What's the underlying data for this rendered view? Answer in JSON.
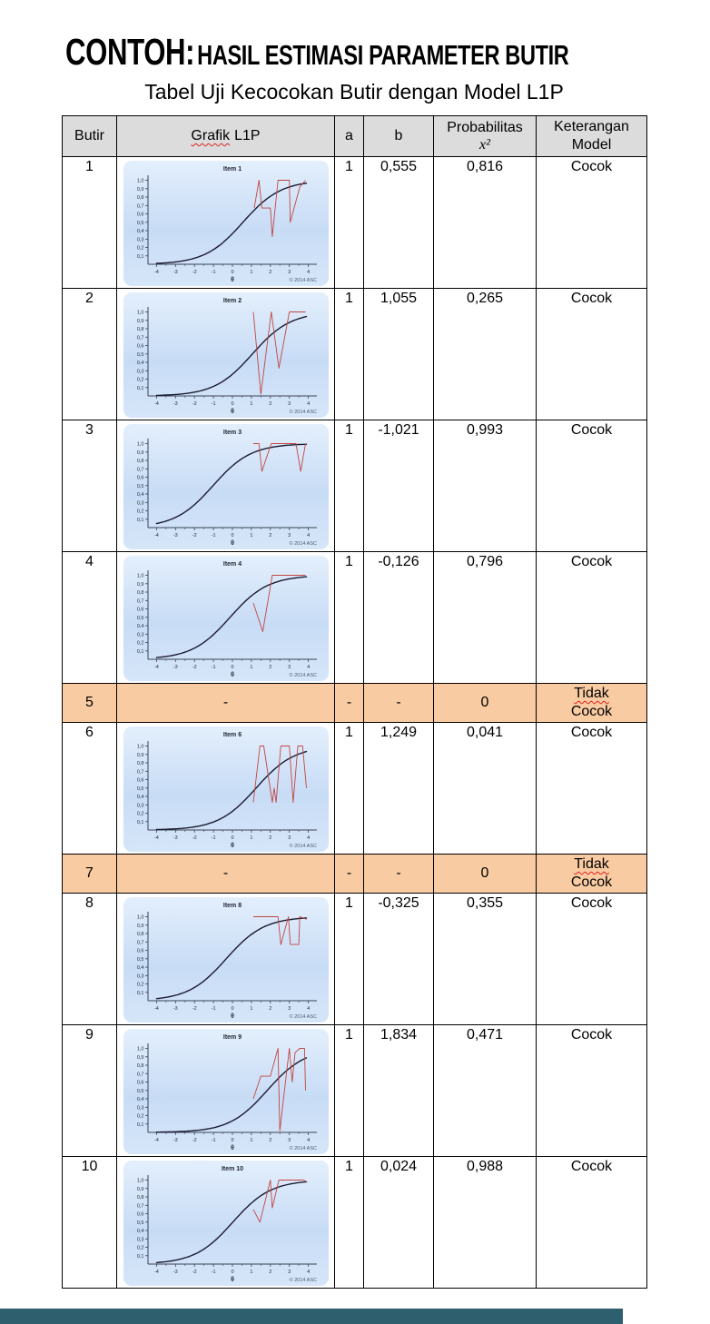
{
  "page": {
    "title_prefix": "CONTOH:",
    "title_rest": "HASIL ESTIMASI PARAMETER BUTIR",
    "subtitle": "Tabel Uji Kecocokan Butir dengan Model L1P"
  },
  "colors": {
    "header_bg": "#dcdcdc",
    "highlight": "#f9cba2",
    "curve": "#1b1b33",
    "observed": "#c2453f",
    "graph_bg_top": "#e3effc",
    "graph_bg_mid": "#c8dcf6",
    "graph_bg_bot": "#d6e6f9",
    "bottom_bar": "#2e5f6e"
  },
  "table": {
    "headers": {
      "butir": "Butir",
      "grafik_word": "Grafik",
      "grafik_rest": "L1P",
      "a": "a",
      "b": "b",
      "prob_line1": "Probabilitas",
      "prob_line2": "x²",
      "keterangan": "Keterangan\nModel"
    },
    "rows": [
      {
        "butir": "1",
        "a": "1",
        "b": "0,555",
        "prob": "0,816",
        "ket": "Cocok"
      },
      {
        "butir": "2",
        "a": "1",
        "b": "1,055",
        "prob": "0,265",
        "ket": "Cocok"
      },
      {
        "butir": "3",
        "a": "1",
        "b": "-1,021",
        "prob": "0,993",
        "ket": "Cocok"
      },
      {
        "butir": "4",
        "a": "1",
        "b": "-0,126",
        "prob": "0,796",
        "ket": "Cocok"
      },
      {
        "butir": "5",
        "grafik": "-",
        "a": "-",
        "b": "-",
        "prob": "0",
        "ket1": "Tidak",
        "ket2": "Cocok"
      },
      {
        "butir": "6",
        "a": "1",
        "b": "1,249",
        "prob": "0,041",
        "ket": "Cocok"
      },
      {
        "butir": "7",
        "grafik": "-",
        "a": "-",
        "b": "-",
        "prob": "0",
        "ket1": "Tidak",
        "ket2": "Cocok"
      },
      {
        "butir": "8",
        "a": "1",
        "b": "-0,325",
        "prob": "0,355",
        "ket": "Cocok"
      },
      {
        "butir": "9",
        "a": "1",
        "b": "1,834",
        "prob": "0,471",
        "ket": "Cocok"
      },
      {
        "butir": "10",
        "a": "1",
        "b": "0,024",
        "prob": "0,988",
        "ket": "Cocok"
      }
    ]
  },
  "chart_data": [
    {
      "type": "line",
      "title": "Item 1",
      "xlabel": "θ",
      "copyright": "© 2014 ASC",
      "x_ticks": [
        -4,
        -3,
        -2,
        -1,
        0,
        1,
        2,
        3,
        4
      ],
      "y_tick_labels": [
        "0,1",
        "0,2",
        "0,3",
        "0,4",
        "0,5",
        "0,6",
        "0,7",
        "0,8",
        "0,9",
        "1,0"
      ],
      "xlim": [
        -4.45,
        4.45
      ],
      "ylim": [
        0,
        1.06
      ],
      "series": [
        {
          "name": "Model L1P",
          "kind": "sigmoid",
          "a": 1,
          "b": 0.555
        },
        {
          "name": "Proporsi amatan",
          "kind": "polyline",
          "points": [
            [
              1.15,
              0.67
            ],
            [
              1.4,
              1.0
            ],
            [
              1.55,
              0.67
            ],
            [
              2.0,
              0.67
            ],
            [
              2.1,
              0.33
            ],
            [
              2.4,
              1.0
            ],
            [
              3.0,
              1.0
            ],
            [
              3.05,
              0.5
            ],
            [
              3.55,
              0.92
            ],
            [
              3.85,
              1.0
            ]
          ]
        }
      ]
    },
    {
      "type": "line",
      "title": "Item 2",
      "xlabel": "θ",
      "copyright": "© 2014 ASC",
      "x_ticks": [
        -4,
        -3,
        -2,
        -1,
        0,
        1,
        2,
        3,
        4
      ],
      "y_tick_labels": [
        "0,1",
        "0,2",
        "0,3",
        "0,4",
        "0,5",
        "0,6",
        "0,7",
        "0,8",
        "0,9",
        "1,0"
      ],
      "xlim": [
        -4.45,
        4.45
      ],
      "ylim": [
        0,
        1.06
      ],
      "series": [
        {
          "name": "Model L1P",
          "kind": "sigmoid",
          "a": 1,
          "b": 1.055
        },
        {
          "name": "Proporsi amatan",
          "kind": "polyline",
          "points": [
            [
              1.1,
              1.0
            ],
            [
              1.5,
              0.02
            ],
            [
              2.05,
              1.0
            ],
            [
              2.45,
              0.33
            ],
            [
              3.0,
              1.0
            ],
            [
              3.85,
              1.0
            ]
          ]
        }
      ]
    },
    {
      "type": "line",
      "title": "Item 3",
      "xlabel": "θ",
      "copyright": "© 2014 ASC",
      "x_ticks": [
        -4,
        -3,
        -2,
        -1,
        0,
        1,
        2,
        3,
        4
      ],
      "y_tick_labels": [
        "0,1",
        "0,2",
        "0,3",
        "0,4",
        "0,5",
        "0,6",
        "0,7",
        "0,8",
        "0,9",
        "1,0"
      ],
      "xlim": [
        -4.45,
        4.45
      ],
      "ylim": [
        0,
        1.06
      ],
      "series": [
        {
          "name": "Model L1P",
          "kind": "sigmoid",
          "a": 1,
          "b": -1.021
        },
        {
          "name": "Proporsi amatan",
          "kind": "polyline",
          "points": [
            [
              1.1,
              1.0
            ],
            [
              1.4,
              1.0
            ],
            [
              1.55,
              0.67
            ],
            [
              2.05,
              1.0
            ],
            [
              3.35,
              1.0
            ],
            [
              3.6,
              0.67
            ],
            [
              3.85,
              1.0
            ]
          ]
        }
      ]
    },
    {
      "type": "line",
      "title": "Item 4",
      "xlabel": "θ",
      "copyright": "© 2014 ASC",
      "x_ticks": [
        -4,
        -3,
        -2,
        -1,
        0,
        1,
        2,
        3,
        4
      ],
      "y_tick_labels": [
        "0,1",
        "0,2",
        "0,3",
        "0,4",
        "0,5",
        "0,6",
        "0,7",
        "0,8",
        "0,9",
        "1,0"
      ],
      "xlim": [
        -4.45,
        4.45
      ],
      "ylim": [
        0,
        1.06
      ],
      "series": [
        {
          "name": "Model L1P",
          "kind": "sigmoid",
          "a": 1,
          "b": -0.126
        },
        {
          "name": "Proporsi amatan",
          "kind": "polyline",
          "points": [
            [
              1.1,
              0.67
            ],
            [
              1.6,
              0.33
            ],
            [
              2.1,
              1.0
            ],
            [
              3.85,
              1.0
            ]
          ]
        }
      ]
    },
    {
      "type": "line",
      "title": "Item 6",
      "xlabel": "θ",
      "copyright": "© 2014 ASC",
      "x_ticks": [
        -4,
        -3,
        -2,
        -1,
        0,
        1,
        2,
        3,
        4
      ],
      "y_tick_labels": [
        "0,1",
        "0,2",
        "0,3",
        "0,4",
        "0,5",
        "0,6",
        "0,7",
        "0,8",
        "0,9",
        "1,0"
      ],
      "xlim": [
        -4.45,
        4.45
      ],
      "ylim": [
        0,
        1.06
      ],
      "series": [
        {
          "name": "Model L1P",
          "kind": "sigmoid",
          "a": 1,
          "b": 1.249
        },
        {
          "name": "Proporsi amatan",
          "kind": "polyline",
          "points": [
            [
              1.1,
              0.33
            ],
            [
              1.45,
              1.0
            ],
            [
              1.65,
              1.0
            ],
            [
              2.1,
              0.33
            ],
            [
              2.2,
              0.5
            ],
            [
              2.3,
              0.33
            ],
            [
              2.55,
              1.0
            ],
            [
              3.0,
              1.0
            ],
            [
              3.2,
              0.33
            ],
            [
              3.45,
              1.0
            ],
            [
              3.7,
              1.0
            ],
            [
              3.9,
              0.5
            ]
          ]
        }
      ]
    },
    {
      "type": "line",
      "title": "Item 8",
      "xlabel": "θ",
      "copyright": "© 2014 ASC",
      "x_ticks": [
        -4,
        -3,
        -2,
        -1,
        0,
        1,
        2,
        3,
        4
      ],
      "y_tick_labels": [
        "0,1",
        "0,2",
        "0,3",
        "0,4",
        "0,5",
        "0,6",
        "0,7",
        "0,8",
        "0,9",
        "1,0"
      ],
      "xlim": [
        -4.45,
        4.45
      ],
      "ylim": [
        0,
        1.06
      ],
      "series": [
        {
          "name": "Model L1P",
          "kind": "sigmoid",
          "a": 1,
          "b": -0.325
        },
        {
          "name": "Proporsi amatan",
          "kind": "polyline",
          "points": [
            [
              1.1,
              1.0
            ],
            [
              2.4,
              1.0
            ],
            [
              2.55,
              0.67
            ],
            [
              2.95,
              1.0
            ],
            [
              3.05,
              0.67
            ],
            [
              3.5,
              0.67
            ],
            [
              3.55,
              1.0
            ],
            [
              3.9,
              0.97
            ]
          ]
        }
      ]
    },
    {
      "type": "line",
      "title": "Item 9",
      "xlabel": "θ",
      "copyright": "© 2014 ASC",
      "x_ticks": [
        -4,
        -3,
        -2,
        -1,
        0,
        1,
        2,
        3,
        4
      ],
      "y_tick_labels": [
        "0,1",
        "0,2",
        "0,3",
        "0,4",
        "0,5",
        "0,6",
        "0,7",
        "0,8",
        "0,9",
        "1,0"
      ],
      "xlim": [
        -4.45,
        4.45
      ],
      "ylim": [
        0,
        1.06
      ],
      "series": [
        {
          "name": "Model L1P",
          "kind": "sigmoid",
          "a": 1,
          "b": 1.834
        },
        {
          "name": "Proporsi amatan",
          "kind": "polyline",
          "points": [
            [
              1.1,
              0.4
            ],
            [
              1.5,
              0.67
            ],
            [
              2.0,
              0.67
            ],
            [
              2.4,
              1.0
            ],
            [
              2.5,
              0.02
            ],
            [
              3.0,
              1.0
            ],
            [
              3.15,
              0.6
            ],
            [
              3.3,
              0.95
            ],
            [
              3.55,
              1.0
            ],
            [
              3.8,
              1.0
            ],
            [
              3.85,
              0.5
            ]
          ]
        }
      ]
    },
    {
      "type": "line",
      "title": "Item 10",
      "xlabel": "θ",
      "copyright": "© 2014 ASC",
      "x_ticks": [
        -4,
        -3,
        -2,
        -1,
        0,
        1,
        2,
        3,
        4
      ],
      "y_tick_labels": [
        "0,1",
        "0,2",
        "0,3",
        "0,4",
        "0,5",
        "0,6",
        "0,7",
        "0,8",
        "0,9",
        "1,0"
      ],
      "xlim": [
        -4.45,
        4.45
      ],
      "ylim": [
        0,
        1.06
      ],
      "series": [
        {
          "name": "Model L1P",
          "kind": "sigmoid",
          "a": 1,
          "b": 0.024
        },
        {
          "name": "Proporsi amatan",
          "kind": "polyline",
          "points": [
            [
              1.1,
              0.65
            ],
            [
              1.45,
              0.5
            ],
            [
              2.0,
              1.0
            ],
            [
              2.1,
              0.67
            ],
            [
              2.45,
              1.0
            ],
            [
              3.75,
              1.0
            ],
            [
              3.9,
              0.98
            ]
          ]
        }
      ]
    }
  ]
}
